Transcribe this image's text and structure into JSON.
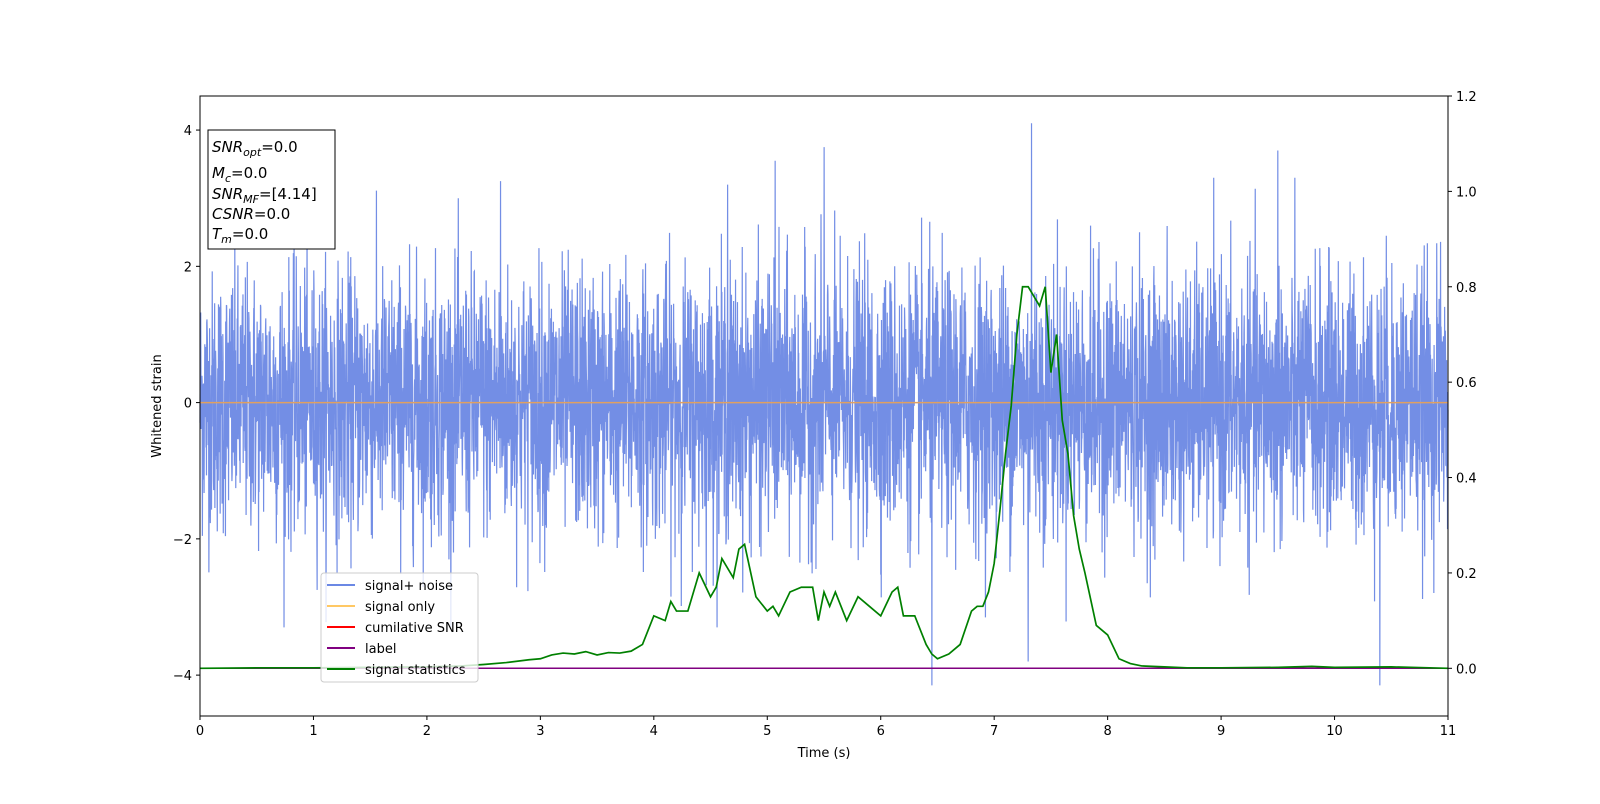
{
  "chart_data": {
    "type": "line",
    "xlabel": "Time (s)",
    "ylabel": "Whitened strain",
    "xlim": [
      0,
      11
    ],
    "ylim": [
      -4.6,
      4.5
    ],
    "y2lim": [
      -0.1,
      1.2
    ],
    "x_ticks": [
      "0",
      "1",
      "2",
      "3",
      "4",
      "5",
      "6",
      "7",
      "8",
      "9",
      "10",
      "11"
    ],
    "y_ticks": [
      "−4",
      "−2",
      "0",
      "2",
      "4"
    ],
    "y2_ticks": [
      "0.0",
      "0.2",
      "0.4",
      "0.6",
      "0.8",
      "1.0",
      "1.2"
    ],
    "legend_position": "lower-left",
    "legend": [
      {
        "label": "signal+ noise",
        "color": "#6b88e4"
      },
      {
        "label": "signal only",
        "color": "#ffc864"
      },
      {
        "label": "cumilative SNR",
        "color": "#ff0000"
      },
      {
        "label": "label",
        "color": "#800080"
      },
      {
        "label": "signal statistics",
        "color": "#008000"
      }
    ],
    "series": [
      {
        "name": "signal+ noise",
        "axis": "left",
        "color": "#6b88e4",
        "description_amplitude_range": [
          -4.15,
          4.1
        ],
        "notable_peaks": [
          {
            "x": 2.65,
            "y": 3.25
          },
          {
            "x": 4.65,
            "y": 3.2
          },
          {
            "x": 5.07,
            "y": 3.55
          },
          {
            "x": 5.5,
            "y": 3.75
          },
          {
            "x": 6.45,
            "y": 3.55
          },
          {
            "x": 7.33,
            "y": 4.1
          },
          {
            "x": 9.5,
            "y": 3.7
          },
          {
            "x": 6.45,
            "y": -4.15
          },
          {
            "x": 10.4,
            "y": -4.15
          },
          {
            "x": 7.3,
            "y": -3.8
          }
        ]
      },
      {
        "name": "signal only",
        "axis": "left",
        "color": "#ffc864",
        "x": [
          0,
          11
        ],
        "y": [
          0,
          0
        ]
      },
      {
        "name": "label",
        "axis": "right",
        "color": "#800080",
        "x": [
          0,
          11
        ],
        "y": [
          0,
          0
        ]
      },
      {
        "name": "signal statistics",
        "axis": "right",
        "color": "#008000",
        "x": [
          0,
          0.5,
          1.0,
          1.5,
          2.0,
          2.3,
          2.5,
          2.7,
          2.9,
          3.0,
          3.1,
          3.2,
          3.3,
          3.4,
          3.5,
          3.6,
          3.7,
          3.8,
          3.9,
          4.0,
          4.1,
          4.15,
          4.2,
          4.3,
          4.4,
          4.5,
          4.55,
          4.6,
          4.7,
          4.75,
          4.8,
          4.9,
          5.0,
          5.05,
          5.1,
          5.2,
          5.3,
          5.4,
          5.45,
          5.5,
          5.55,
          5.6,
          5.7,
          5.8,
          5.9,
          6.0,
          6.1,
          6.15,
          6.2,
          6.3,
          6.4,
          6.45,
          6.5,
          6.6,
          6.7,
          6.8,
          6.85,
          6.9,
          6.95,
          7.0,
          7.05,
          7.1,
          7.15,
          7.2,
          7.25,
          7.3,
          7.35,
          7.4,
          7.45,
          7.5,
          7.55,
          7.6,
          7.65,
          7.7,
          7.75,
          7.8,
          7.9,
          8.0,
          8.1,
          8.2,
          8.3,
          8.5,
          8.7,
          9.0,
          9.5,
          9.8,
          10.0,
          10.5,
          11.0
        ],
        "y": [
          0.0,
          0.001,
          0.001,
          0.002,
          0.003,
          0.005,
          0.008,
          0.012,
          0.018,
          0.02,
          0.028,
          0.032,
          0.03,
          0.035,
          0.028,
          0.033,
          0.032,
          0.036,
          0.05,
          0.11,
          0.1,
          0.14,
          0.12,
          0.12,
          0.2,
          0.15,
          0.17,
          0.23,
          0.19,
          0.25,
          0.26,
          0.15,
          0.12,
          0.13,
          0.11,
          0.16,
          0.17,
          0.17,
          0.1,
          0.16,
          0.13,
          0.16,
          0.1,
          0.15,
          0.13,
          0.11,
          0.16,
          0.17,
          0.11,
          0.11,
          0.05,
          0.03,
          0.02,
          0.03,
          0.05,
          0.12,
          0.13,
          0.13,
          0.16,
          0.22,
          0.33,
          0.45,
          0.55,
          0.7,
          0.8,
          0.8,
          0.78,
          0.76,
          0.8,
          0.62,
          0.7,
          0.52,
          0.45,
          0.32,
          0.25,
          0.2,
          0.09,
          0.07,
          0.02,
          0.01,
          0.005,
          0.003,
          0.001,
          0.001,
          0.002,
          0.004,
          0.002,
          0.003,
          0.0
        ]
      }
    ]
  },
  "annotation_box": {
    "lines": [
      {
        "main": "SNR",
        "sub": "opt",
        "value": "=0.0"
      },
      {
        "main": "M",
        "sub": "c",
        "value": "=0.0"
      },
      {
        "main": "SNR",
        "sub": "MF",
        "value": "=[4.14]"
      },
      {
        "main": "CSNR",
        "sub": "",
        "value": "=0.0"
      },
      {
        "main": "T",
        "sub": "m",
        "value": "=0.0"
      }
    ]
  }
}
